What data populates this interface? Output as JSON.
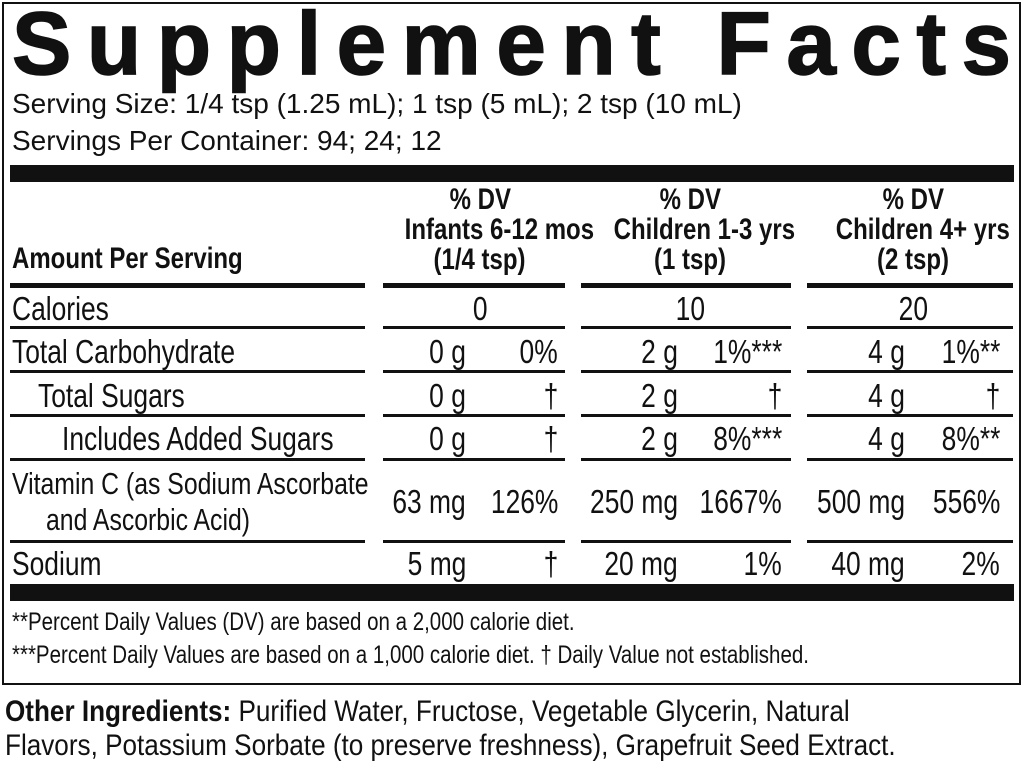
{
  "title": "Supplement Facts",
  "serving_size": "Serving Size: 1/4 tsp (1.25 mL); 1 tsp (5 mL); 2 tsp (10 mL)",
  "servings_per_container": "Servings Per Container: 94; 24; 12",
  "header": {
    "amount_label": "Amount Per Serving",
    "columns": [
      {
        "dv": "% DV",
        "group": "Infants 6-12 mos",
        "serving": "(1/4  tsp)"
      },
      {
        "dv": "% DV",
        "group": "Children 1-3 yrs",
        "serving": "(1  tsp)"
      },
      {
        "dv": "% DV",
        "group": "Children 4+ yrs",
        "serving": "(2  tsp)"
      }
    ]
  },
  "rows": [
    {
      "name": "Calories",
      "single": true,
      "cols": [
        {
          "amount": "0"
        },
        {
          "amount": "10"
        },
        {
          "amount": "20"
        }
      ]
    },
    {
      "name": "Total Carbohydrate",
      "cols": [
        {
          "amount": "0 g",
          "dv": "0%"
        },
        {
          "amount": "2 g",
          "dv": "1%***"
        },
        {
          "amount": "4 g",
          "dv": "1%**"
        }
      ]
    },
    {
      "name": "Total Sugars",
      "indent": 1,
      "cols": [
        {
          "amount": "0 g",
          "dv": "†"
        },
        {
          "amount": "2 g",
          "dv": "†"
        },
        {
          "amount": "4 g",
          "dv": "†"
        }
      ]
    },
    {
      "name": "Includes Added Sugars",
      "indent": 2,
      "cols": [
        {
          "amount": "0 g",
          "dv": "†"
        },
        {
          "amount": "2 g",
          "dv": "8%***"
        },
        {
          "amount": "4 g",
          "dv": "8%**"
        }
      ]
    },
    {
      "name": "Vitamin C (as Sodium Ascorbate",
      "name2": "and Ascorbic Acid)",
      "cols": [
        {
          "amount": "63 mg",
          "dv": "126%"
        },
        {
          "amount": "250 mg",
          "dv": "1667%"
        },
        {
          "amount": "500 mg",
          "dv": "556%"
        }
      ]
    },
    {
      "name": "Sodium",
      "cols": [
        {
          "amount": "5 mg",
          "dv": "†"
        },
        {
          "amount": "20 mg",
          "dv": "1%"
        },
        {
          "amount": "40 mg",
          "dv": "2%"
        }
      ]
    }
  ],
  "footnotes": [
    "**Percent Daily Values (DV) are based on a 2,000 calorie diet.",
    "***Percent Daily Values are based on a 1,000 calorie diet. † Daily Value not established."
  ],
  "other_ingredients": {
    "label": "Other Ingredients:",
    "line1": " Purified Water, Fructose, Vegetable Glycerin, Natural",
    "line2": "Flavors, Potassium Sorbate (to preserve freshness), Grapefruit Seed Extract."
  }
}
